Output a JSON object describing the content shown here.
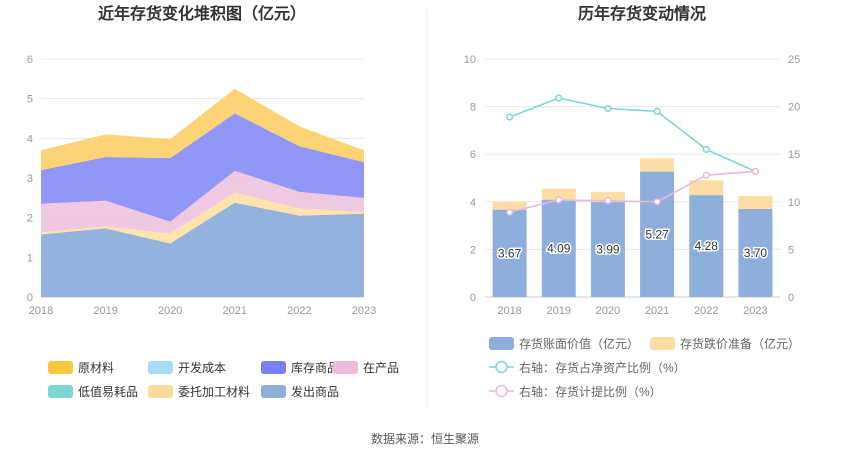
{
  "source_text": "数据来源：恒生聚源",
  "chart_data": [
    {
      "type": "area",
      "stacked": true,
      "title": "近年存货变化堆积图（亿元）",
      "x": [
        "2018",
        "2019",
        "2020",
        "2021",
        "2022",
        "2023"
      ],
      "ylim": [
        0,
        6
      ],
      "yticks": [
        "0",
        "1",
        "2",
        "3",
        "4",
        "5",
        "6"
      ],
      "grid": true,
      "legend_position": "bottom",
      "series": [
        {
          "name": "发出商品",
          "color": "#8eaedc",
          "values": [
            1.58,
            1.73,
            1.35,
            2.38,
            2.05,
            2.1
          ]
        },
        {
          "name": "委托加工材料",
          "color": "#fde1a8",
          "values": [
            0.05,
            0.05,
            0.25,
            0.25,
            0.18,
            0.05
          ]
        },
        {
          "name": "低值易耗品",
          "color": "#7fd6d6",
          "values": [
            0.0,
            0.0,
            0.0,
            0.0,
            0.0,
            0.0
          ]
        },
        {
          "name": "在产品",
          "color": "#eec5e0",
          "values": [
            0.72,
            0.65,
            0.3,
            0.55,
            0.42,
            0.35
          ]
        },
        {
          "name": "库存商品",
          "color": "#8b90f7",
          "values": [
            0.85,
            1.1,
            1.6,
            1.45,
            1.15,
            0.9
          ]
        },
        {
          "name": "开发成本",
          "color": "#a8def8",
          "values": [
            0.0,
            0.0,
            0.0,
            0.0,
            0.0,
            0.0
          ]
        },
        {
          "name": "原材料",
          "color": "#fdd26e",
          "values": [
            0.5,
            0.57,
            0.48,
            0.62,
            0.5,
            0.3
          ]
        }
      ],
      "legend_order": [
        "原材料",
        "开发成本",
        "库存商品",
        "在产品",
        "低值易耗品",
        "委托加工材料",
        "发出商品"
      ],
      "legend_swatch_colors": {
        "原材料": "#fcc73f",
        "开发成本": "#a6dcf8",
        "库存商品": "#7a7ff5",
        "在产品": "#edbbdc",
        "低值易耗品": "#7fd6d6",
        "委托加工材料": "#fdd99a",
        "发出商品": "#8eaedc"
      }
    },
    {
      "type": "bar",
      "title": "历年存货变动情况",
      "categories": [
        "2018",
        "2019",
        "2020",
        "2021",
        "2022",
        "2023"
      ],
      "ylim": [
        0,
        10
      ],
      "yticks": [
        "0",
        "2",
        "4",
        "6",
        "8",
        "10"
      ],
      "y2lim": [
        0,
        25
      ],
      "y2ticks": [
        "0",
        "5",
        "10",
        "15",
        "20",
        "25"
      ],
      "grid": true,
      "legend_position": "bottom",
      "series": [
        {
          "name": "存货账面价值（亿元）",
          "kind": "bar",
          "axis": "left",
          "color": "#8eaedc",
          "values": [
            3.67,
            4.09,
            3.99,
            5.27,
            4.28,
            3.7
          ],
          "labels": [
            "3.67",
            "4.09",
            "3.99",
            "5.27",
            "4.28",
            "3.70"
          ]
        },
        {
          "name": "存货跌价准备（亿元）",
          "kind": "bar",
          "axis": "left",
          "color": "#fddca6",
          "values": [
            0.33,
            0.46,
            0.43,
            0.56,
            0.62,
            0.55
          ]
        },
        {
          "name": "右轴：存货占净资产比例（%）",
          "kind": "line",
          "axis": "right",
          "color": "#7fd6d6",
          "values": [
            18.9,
            20.9,
            19.8,
            19.5,
            15.5,
            13.2
          ]
        },
        {
          "name": "右轴：存货计提比例（%）",
          "kind": "line",
          "axis": "right",
          "color": "#e9b8e0",
          "values": [
            8.9,
            10.2,
            10.1,
            10.0,
            12.8,
            13.2
          ]
        }
      ]
    }
  ]
}
